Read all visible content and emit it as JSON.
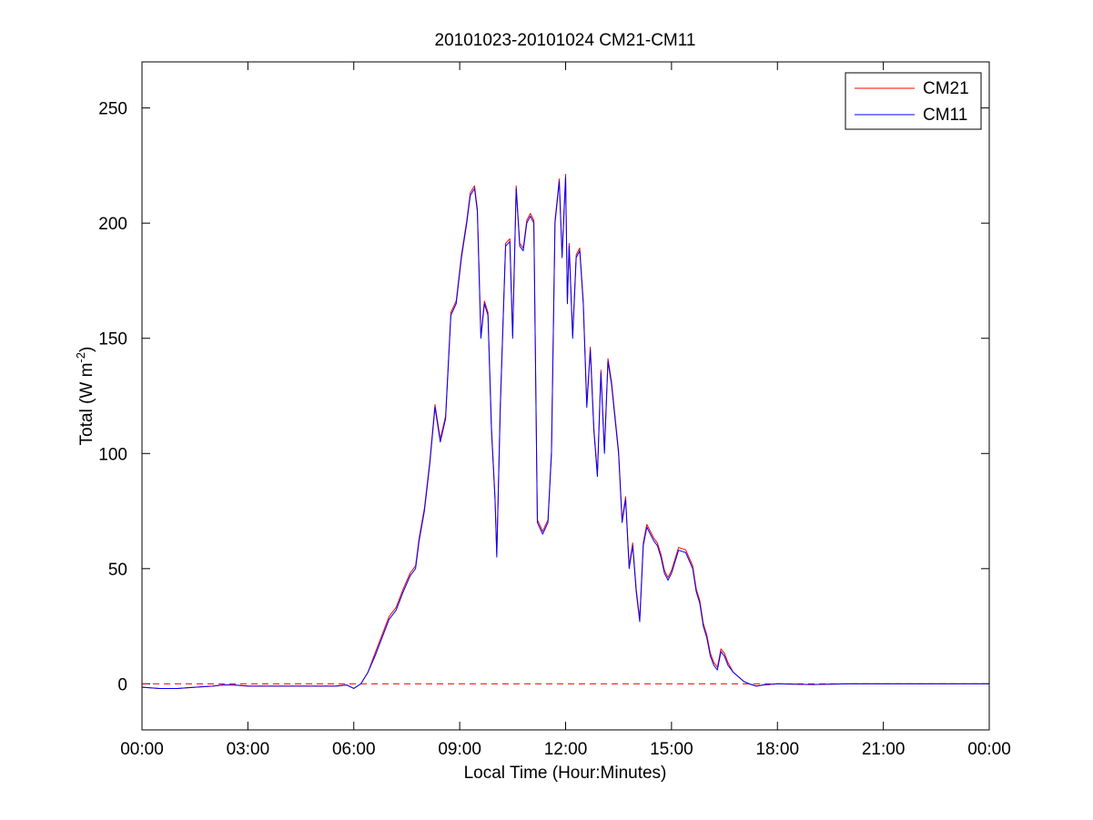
{
  "chart_data": {
    "type": "line",
    "title": "20101023-20101024 CM21-CM11",
    "xlabel": "Local Time (Hour:Minutes)",
    "ylabel_main": "Total (W m",
    "ylabel_sup": "-2",
    "ylabel_close": ")",
    "x_unit": "hours",
    "xlim": [
      0,
      24
    ],
    "ylim": [
      -20,
      270
    ],
    "x_ticks": [
      0,
      3,
      6,
      9,
      12,
      15,
      18,
      21,
      24
    ],
    "x_tick_labels": [
      "00:00",
      "03:00",
      "06:00",
      "09:00",
      "12:00",
      "15:00",
      "18:00",
      "21:00",
      "00:00"
    ],
    "y_ticks": [
      0,
      50,
      100,
      150,
      200,
      250
    ],
    "y_tick_labels": [
      "0",
      "50",
      "100",
      "150",
      "200",
      "250"
    ],
    "grid": false,
    "legend_position": "top-right",
    "reference_line": {
      "y": 0,
      "color": "#ff0000",
      "style": "dashed"
    },
    "series": [
      {
        "name": "CM21",
        "color": "#ff0000",
        "offset": 1.2
      },
      {
        "name": "CM11",
        "color": "#0000ff",
        "offset": 0
      }
    ],
    "x": [
      0,
      0.5,
      1.0,
      1.5,
      2.0,
      2.3,
      2.6,
      3.0,
      3.5,
      4.0,
      4.5,
      5.0,
      5.5,
      5.8,
      6.0,
      6.2,
      6.4,
      6.6,
      6.8,
      7.0,
      7.2,
      7.4,
      7.6,
      7.75,
      7.85,
      8.0,
      8.15,
      8.3,
      8.45,
      8.6,
      8.75,
      8.9,
      9.05,
      9.2,
      9.3,
      9.42,
      9.5,
      9.6,
      9.7,
      9.8,
      9.9,
      10.0,
      10.05,
      10.15,
      10.3,
      10.42,
      10.5,
      10.6,
      10.7,
      10.8,
      10.9,
      11.0,
      11.1,
      11.2,
      11.35,
      11.5,
      11.6,
      11.7,
      11.82,
      11.9,
      12.0,
      12.05,
      12.1,
      12.2,
      12.3,
      12.4,
      12.5,
      12.6,
      12.7,
      12.8,
      12.9,
      13.0,
      13.1,
      13.2,
      13.3,
      13.4,
      13.5,
      13.6,
      13.7,
      13.8,
      13.9,
      14.0,
      14.1,
      14.2,
      14.3,
      14.4,
      14.5,
      14.6,
      14.7,
      14.8,
      14.9,
      15.0,
      15.2,
      15.4,
      15.6,
      15.7,
      15.8,
      15.9,
      16.0,
      16.1,
      16.2,
      16.3,
      16.4,
      16.5,
      16.6,
      16.75,
      16.9,
      17.05,
      17.2,
      17.4,
      17.6,
      18.0,
      19.0,
      20.0,
      21.0,
      22.0,
      23.0,
      24.0
    ],
    "values": [
      -1.5,
      -2.0,
      -2.0,
      -1.5,
      -1.0,
      -0.5,
      -0.5,
      -1.0,
      -1.0,
      -1.0,
      -1.0,
      -1.0,
      -1.0,
      -0.5,
      -2.0,
      0,
      5,
      12,
      20,
      28,
      32,
      40,
      47,
      50,
      62,
      75,
      95,
      120,
      105,
      115,
      160,
      165,
      185,
      200,
      212,
      215,
      205,
      150,
      165,
      160,
      110,
      80,
      55,
      120,
      190,
      192,
      150,
      215,
      190,
      188,
      200,
      203,
      200,
      70,
      65,
      70,
      100,
      200,
      218,
      185,
      220,
      165,
      190,
      150,
      185,
      188,
      165,
      120,
      145,
      110,
      90,
      135,
      100,
      140,
      130,
      115,
      100,
      70,
      80,
      50,
      60,
      40,
      27,
      60,
      68,
      65,
      62,
      60,
      55,
      48,
      45,
      48,
      58,
      57,
      50,
      40,
      35,
      25,
      20,
      12,
      8,
      6,
      14,
      12,
      8,
      5,
      3,
      1,
      0,
      -1,
      -0.5,
      0,
      -0.3,
      0,
      0,
      0,
      0,
      0
    ]
  }
}
